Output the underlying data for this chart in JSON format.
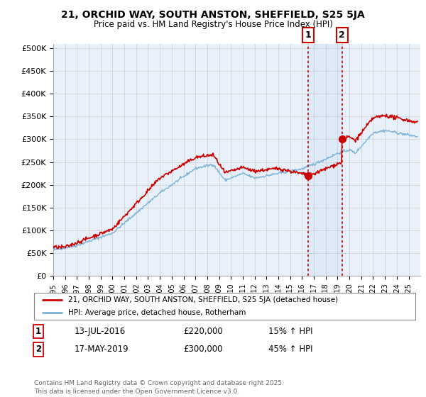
{
  "title1": "21, ORCHID WAY, SOUTH ANSTON, SHEFFIELD, S25 5JA",
  "title2": "Price paid vs. HM Land Registry's House Price Index (HPI)",
  "ylabel_ticks": [
    "£0",
    "£50K",
    "£100K",
    "£150K",
    "£200K",
    "£250K",
    "£300K",
    "£350K",
    "£400K",
    "£450K",
    "£500K"
  ],
  "ytick_values": [
    0,
    50000,
    100000,
    150000,
    200000,
    250000,
    300000,
    350000,
    400000,
    450000,
    500000
  ],
  "hpi_color": "#7db4d8",
  "price_color": "#cc0000",
  "vline_color": "#cc0000",
  "background_color": "#ffffff",
  "plot_bg_color": "#e8f0fa",
  "transaction1_date": "13-JUL-2016",
  "transaction1_price": 220000,
  "transaction1_label": "1",
  "transaction1_hpi": "15% ↑ HPI",
  "transaction2_date": "17-MAY-2019",
  "transaction2_price": 300000,
  "transaction2_label": "2",
  "transaction2_hpi": "45% ↑ HPI",
  "legend1": "21, ORCHID WAY, SOUTH ANSTON, SHEFFIELD, S25 5JA (detached house)",
  "legend2": "HPI: Average price, detached house, Rotherham",
  "footer": "Contains HM Land Registry data © Crown copyright and database right 2025.\nThis data is licensed under the Open Government Licence v3.0.",
  "t1_year": 2016.54,
  "t2_year": 2019.38,
  "xstart": 1995,
  "xend": 2026
}
